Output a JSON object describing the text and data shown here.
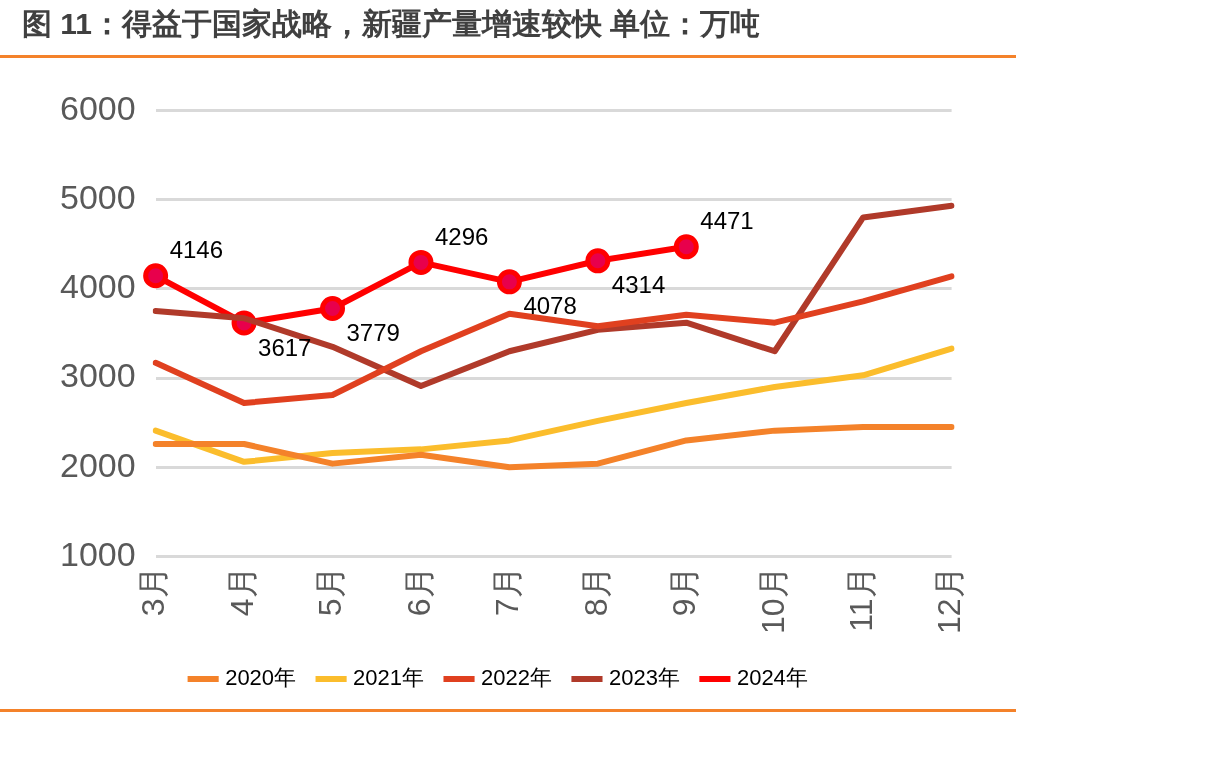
{
  "chart_data": {
    "type": "line",
    "title": "图 11：得益于国家战略，新疆产量增速较快 单位：万吨",
    "categories": [
      "3月",
      "4月",
      "5月",
      "6月",
      "7月",
      "8月",
      "9月",
      "10月",
      "11月",
      "12月"
    ],
    "series": [
      {
        "name": "2020年",
        "color": "#f4822a",
        "marker": "none",
        "values": [
          2260,
          2260,
          2040,
          2140,
          2000,
          2040,
          2300,
          2410,
          2450,
          2450
        ]
      },
      {
        "name": "2021年",
        "color": "#fbbd2c",
        "marker": "none",
        "values": [
          2410,
          2060,
          2160,
          2200,
          2300,
          2520,
          2720,
          2900,
          3030,
          3330
        ]
      },
      {
        "name": "2022年",
        "color": "#e0401f",
        "marker": "none",
        "values": [
          3170,
          2720,
          2810,
          3300,
          3720,
          3580,
          3710,
          3620,
          3860,
          4140
        ]
      },
      {
        "name": "2023年",
        "color": "#b03a2a",
        "marker": "none",
        "values": [
          3750,
          3670,
          3350,
          2910,
          3300,
          3540,
          3620,
          3300,
          4800,
          4930
        ]
      },
      {
        "name": "2024年",
        "color": "#ff0000",
        "marker": "circle",
        "values": [
          4146,
          3617,
          3779,
          4296,
          4078,
          4314,
          4471,
          null,
          null,
          null
        ],
        "value_labels": [
          "4146",
          "3617",
          "3779",
          "4296",
          "4078",
          "4314",
          "4471",
          null,
          null,
          null
        ]
      }
    ],
    "ylim": [
      1000,
      6000
    ],
    "yticks": [
      1000,
      2000,
      3000,
      4000,
      5000,
      6000
    ],
    "grid": "y",
    "legend": "bottom"
  }
}
